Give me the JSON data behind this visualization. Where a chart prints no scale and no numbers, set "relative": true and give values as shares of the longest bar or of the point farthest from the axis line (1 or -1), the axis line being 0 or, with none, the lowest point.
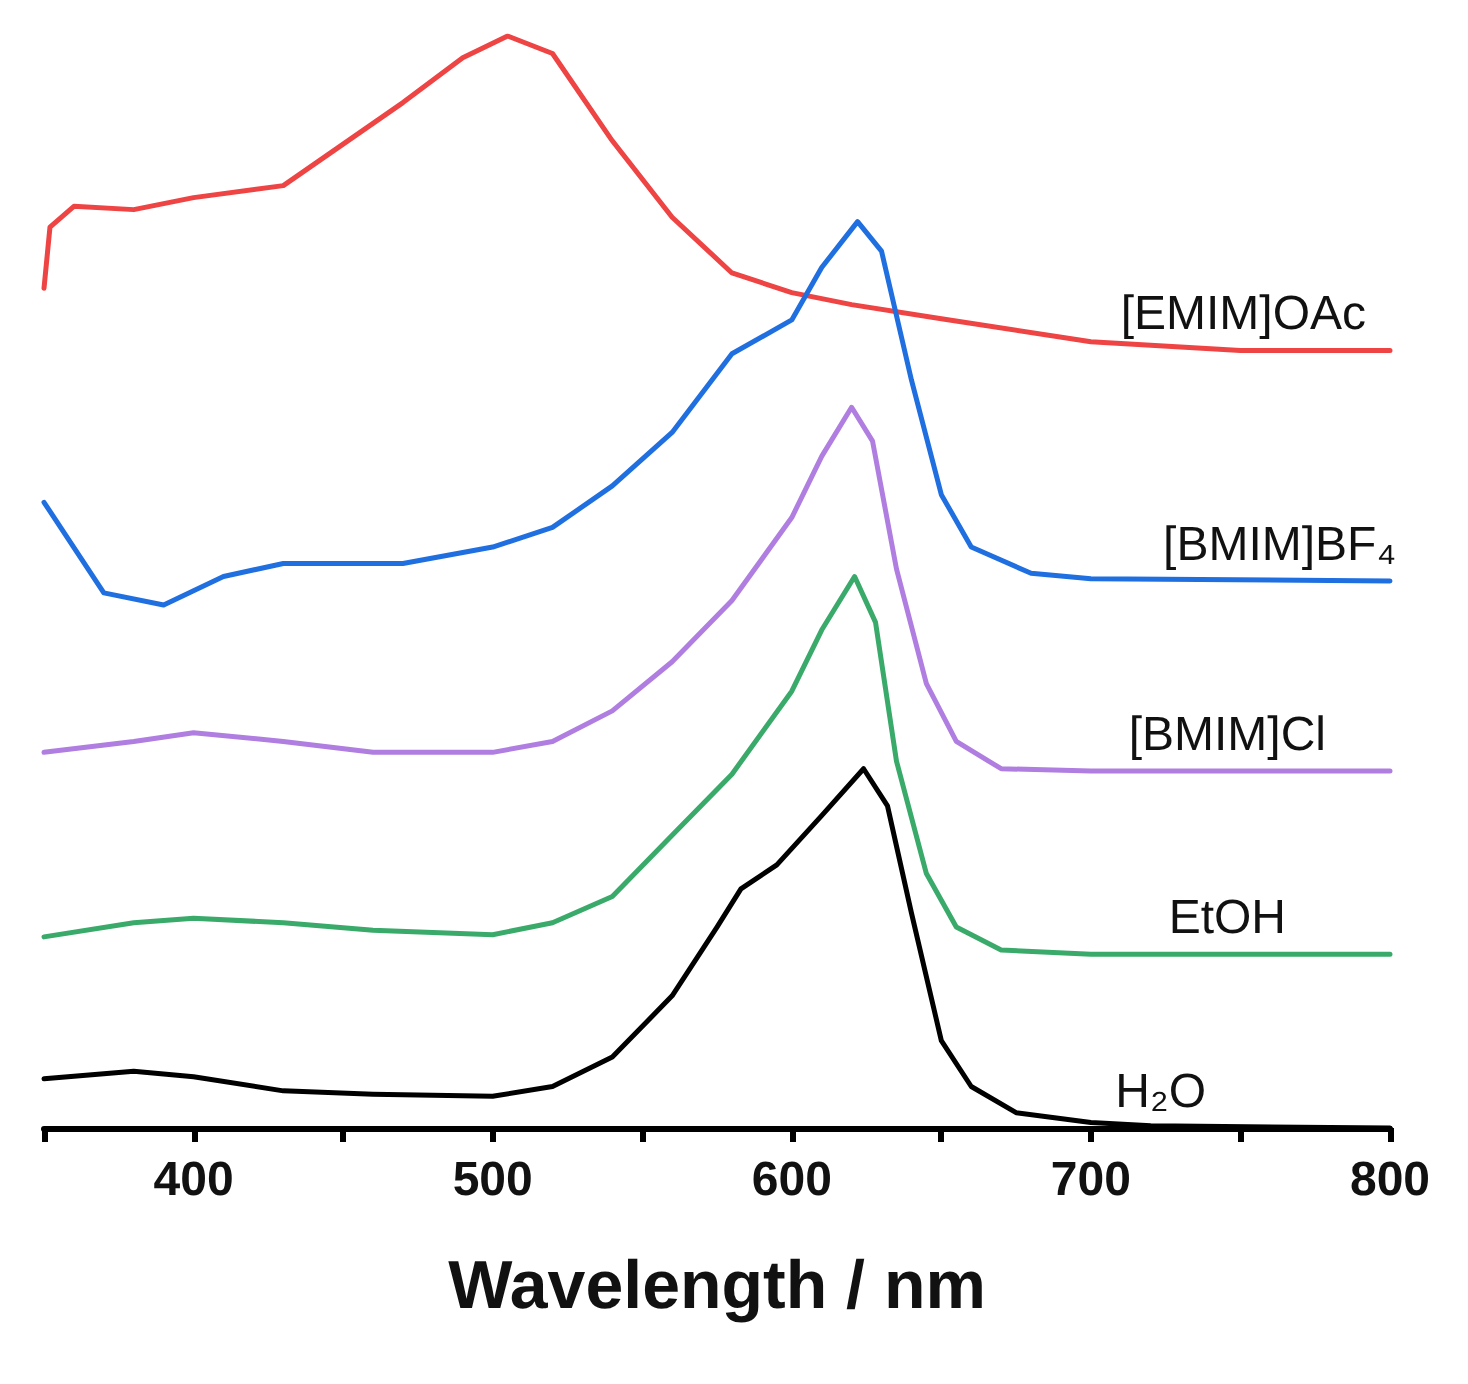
{
  "chart_data": {
    "type": "line",
    "relative": true,
    "xlabel": "Wavelength / nm",
    "xlim": [
      350,
      800
    ],
    "xticks": [
      {
        "value": 350,
        "label": null
      },
      400,
      {
        "value": 450,
        "label": null
      },
      500,
      {
        "value": 550,
        "label": null
      },
      600,
      {
        "value": 650,
        "label": null
      },
      700,
      {
        "value": 750,
        "label": null
      },
      800
    ],
    "grid": false,
    "legend": false,
    "marker": "none",
    "line_style": "solid",
    "series": [
      {
        "name": "[EMIM]OAc",
        "color": "#ee4444",
        "x": [
          350,
          352,
          360,
          380,
          400,
          430,
          450,
          470,
          490,
          505,
          520,
          540,
          560,
          580,
          600,
          620,
          650,
          700,
          750,
          800
        ],
        "values": [
          0.769,
          0.825,
          0.844,
          0.841,
          0.852,
          0.863,
          0.901,
          0.939,
          0.98,
          1.0,
          0.984,
          0.904,
          0.834,
          0.783,
          0.765,
          0.754,
          0.741,
          0.72,
          0.712,
          0.712
        ]
      },
      {
        "name": "[BMIM]BF₄",
        "color": "#1f6fe0",
        "x": [
          350,
          370,
          390,
          410,
          430,
          470,
          500,
          520,
          540,
          560,
          580,
          600,
          610,
          622,
          630,
          640,
          650,
          660,
          680,
          700,
          800
        ],
        "values": [
          0.573,
          0.49,
          0.479,
          0.505,
          0.517,
          0.517,
          0.532,
          0.55,
          0.588,
          0.637,
          0.709,
          0.74,
          0.788,
          0.83,
          0.803,
          0.685,
          0.58,
          0.532,
          0.508,
          0.503,
          0.501
        ]
      },
      {
        "name": "[BMIM]Cl",
        "color": "#b07ee0",
        "x": [
          350,
          380,
          400,
          430,
          460,
          500,
          520,
          540,
          560,
          580,
          600,
          610,
          620,
          627,
          635,
          645,
          655,
          670,
          700,
          800
        ],
        "values": [
          0.344,
          0.354,
          0.362,
          0.354,
          0.344,
          0.344,
          0.354,
          0.382,
          0.427,
          0.483,
          0.559,
          0.615,
          0.66,
          0.629,
          0.512,
          0.407,
          0.354,
          0.329,
          0.327,
          0.327
        ]
      },
      {
        "name": "EtOH",
        "color": "#3aaa6a",
        "x": [
          350,
          380,
          400,
          430,
          460,
          500,
          520,
          540,
          560,
          580,
          600,
          610,
          621,
          628,
          635,
          645,
          655,
          670,
          700,
          800
        ],
        "values": [
          0.175,
          0.188,
          0.192,
          0.188,
          0.181,
          0.177,
          0.188,
          0.212,
          0.268,
          0.324,
          0.4,
          0.456,
          0.505,
          0.463,
          0.336,
          0.233,
          0.184,
          0.163,
          0.159,
          0.159
        ]
      },
      {
        "name": "H₂O",
        "color": "#000000",
        "x": [
          350,
          380,
          400,
          430,
          460,
          500,
          520,
          540,
          560,
          575,
          583,
          595,
          610,
          624,
          632,
          640,
          650,
          660,
          675,
          700,
          720,
          800
        ],
        "values": [
          0.045,
          0.052,
          0.047,
          0.034,
          0.031,
          0.029,
          0.038,
          0.065,
          0.121,
          0.184,
          0.219,
          0.241,
          0.286,
          0.329,
          0.295,
          0.197,
          0.08,
          0.038,
          0.014,
          0.005,
          0.002,
          0
        ]
      }
    ]
  }
}
